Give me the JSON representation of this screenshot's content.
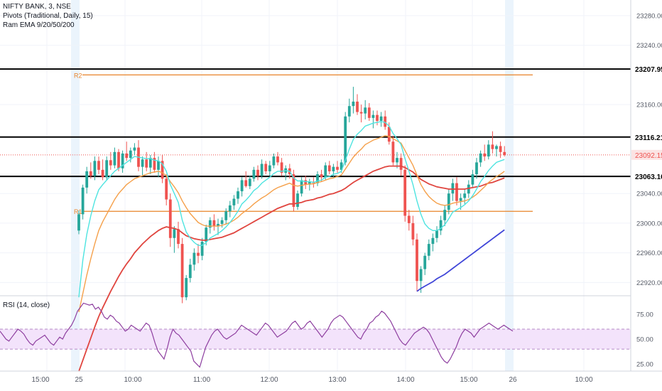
{
  "header": {
    "symbol_line": "NIFTY BANK, 3, NSE",
    "pivots_line": "Pivots (Traditional, Daily, 15)",
    "ema_line": "Ram EMA 9/20/50/200"
  },
  "rsi_title": "RSI (14, close)",
  "colors": {
    "up": "#26a69a",
    "down": "#ef5350",
    "ema9": "#4ee4e0",
    "ema20": "#f5a04a",
    "ema50": "#e0453f",
    "ema200": "#3f45d8",
    "pivot": "#e8842a",
    "rsi": "#8e3fa0",
    "rsi_band": "#f3e3fb",
    "price_line": "#ef5350"
  },
  "chart_data": {
    "type": "candlestick",
    "price_axis": {
      "ticks": [
        "23280.00",
        "23240.00",
        "23207.95",
        "23160.00",
        "23116.21",
        "23092.15",
        "23063.16",
        "23040.00",
        "23000.00",
        "22960.00",
        "22920.00"
      ],
      "tick_values": [
        23280,
        23240,
        23160,
        23040,
        23000,
        22960,
        22920
      ]
    },
    "time_axis": {
      "labels": [
        "15:00",
        "25",
        "10:00",
        "11:00",
        "12:00",
        "13:00",
        "14:00",
        "15:00",
        "26",
        "10:00"
      ]
    },
    "horizontal_lines": [
      {
        "name": "line-23207",
        "value": 23207.95,
        "label": "23207.95",
        "style": "black"
      },
      {
        "name": "line-23116",
        "value": 23116.21,
        "label": "23116.21",
        "style": "black"
      },
      {
        "name": "line-23063",
        "value": 23063.16,
        "label": "23063.16",
        "style": "black"
      }
    ],
    "last_price": {
      "value": 23092.15,
      "label": "23092.15"
    },
    "pivots": [
      {
        "label": "R2",
        "value": 23200
      },
      {
        "label": "R1",
        "value": 23016
      }
    ],
    "candles": [
      [
        22990,
        23017,
        22985,
        23012
      ],
      [
        23012,
        23052,
        23005,
        23048
      ],
      [
        23048,
        23076,
        23040,
        23070
      ],
      [
        23070,
        23082,
        23060,
        23064
      ],
      [
        23064,
        23090,
        23058,
        23084
      ],
      [
        23084,
        23090,
        23066,
        23072
      ],
      [
        23072,
        23086,
        23058,
        23062
      ],
      [
        23062,
        23090,
        23058,
        23085
      ],
      [
        23085,
        23096,
        23072,
        23078
      ],
      [
        23078,
        23102,
        23074,
        23096
      ],
      [
        23096,
        23100,
        23070,
        23074
      ],
      [
        23074,
        23098,
        23068,
        23094
      ],
      [
        23094,
        23110,
        23084,
        23088
      ],
      [
        23088,
        23102,
        23082,
        23098
      ],
      [
        23098,
        23108,
        23092,
        23102
      ],
      [
        23102,
        23112,
        23070,
        23076
      ],
      [
        23076,
        23090,
        23064,
        23086
      ],
      [
        23086,
        23096,
        23070,
        23075
      ],
      [
        23075,
        23092,
        23066,
        23088
      ],
      [
        23088,
        23096,
        23068,
        23072
      ],
      [
        23072,
        23090,
        23062,
        23084
      ],
      [
        23084,
        23092,
        23054,
        23060
      ],
      [
        23060,
        23066,
        23024,
        23032
      ],
      [
        23032,
        23040,
        22968,
        22980
      ],
      [
        22980,
        22996,
        22960,
        22992
      ],
      [
        22992,
        23002,
        22966,
        22972
      ],
      [
        22972,
        22980,
        22892,
        22900
      ],
      [
        22900,
        22930,
        22896,
        22926
      ],
      [
        22926,
        22952,
        22920,
        22944
      ],
      [
        22944,
        22966,
        22936,
        22960
      ],
      [
        22960,
        22972,
        22946,
        22956
      ],
      [
        22956,
        22980,
        22950,
        22975
      ],
      [
        22975,
        22998,
        22970,
        22994
      ],
      [
        22994,
        23008,
        22986,
        23004
      ],
      [
        23004,
        23012,
        22990,
        22996
      ],
      [
        22996,
        23006,
        22984,
        22999
      ],
      [
        22999,
        23008,
        22994,
        23004
      ],
      [
        23004,
        23020,
        22998,
        23016
      ],
      [
        23016,
        23030,
        23008,
        23024
      ],
      [
        23024,
        23038,
        23018,
        23033
      ],
      [
        23033,
        23048,
        23026,
        23043
      ],
      [
        23043,
        23062,
        23036,
        23058
      ],
      [
        23058,
        23070,
        23048,
        23050
      ],
      [
        23050,
        23064,
        23046,
        23060
      ],
      [
        23060,
        23076,
        23056,
        23072
      ],
      [
        23072,
        23078,
        23058,
        23064
      ],
      [
        23064,
        23086,
        23060,
        23080
      ],
      [
        23080,
        23084,
        23066,
        23070
      ],
      [
        23070,
        23084,
        23064,
        23078
      ],
      [
        23078,
        23094,
        23074,
        23090
      ],
      [
        23090,
        23096,
        23078,
        23082
      ],
      [
        23082,
        23088,
        23064,
        23068
      ],
      [
        23068,
        23078,
        23058,
        23074
      ],
      [
        23074,
        23080,
        23060,
        23066
      ],
      [
        23066,
        23072,
        23016,
        23022
      ],
      [
        23022,
        23044,
        23018,
        23040
      ],
      [
        23040,
        23062,
        23036,
        23058
      ],
      [
        23058,
        23064,
        23046,
        23052
      ],
      [
        23052,
        23060,
        23044,
        23056
      ],
      [
        23056,
        23062,
        23048,
        23054
      ],
      [
        23054,
        23070,
        23050,
        23066
      ],
      [
        23066,
        23072,
        23056,
        23062
      ],
      [
        23062,
        23082,
        23058,
        23078
      ],
      [
        23078,
        23084,
        23066,
        23070
      ],
      [
        23070,
        23080,
        23062,
        23076
      ],
      [
        23076,
        23084,
        23068,
        23072
      ],
      [
        23072,
        23086,
        23068,
        23082
      ],
      [
        23082,
        23150,
        23078,
        23144
      ],
      [
        23144,
        23168,
        23136,
        23158
      ],
      [
        23158,
        23184,
        23148,
        23164
      ],
      [
        23164,
        23174,
        23146,
        23150
      ],
      [
        23150,
        23160,
        23136,
        23148
      ],
      [
        23148,
        23166,
        23140,
        23156
      ],
      [
        23156,
        23162,
        23138,
        23142
      ],
      [
        23142,
        23152,
        23128,
        23146
      ],
      [
        23146,
        23152,
        23132,
        23138
      ],
      [
        23138,
        23150,
        23130,
        23144
      ],
      [
        23144,
        23152,
        23126,
        23130
      ],
      [
        23130,
        23136,
        23106,
        23110
      ],
      [
        23110,
        23118,
        23078,
        23082
      ],
      [
        23082,
        23096,
        23074,
        23088
      ],
      [
        23088,
        23094,
        23064,
        23072
      ],
      [
        23072,
        23078,
        23002,
        23010
      ],
      [
        23010,
        23018,
        22990,
        23000
      ],
      [
        23000,
        23010,
        22970,
        22978
      ],
      [
        22978,
        22986,
        22908,
        22922
      ],
      [
        22922,
        22942,
        22906,
        22938
      ],
      [
        22938,
        22960,
        22930,
        22956
      ],
      [
        22956,
        22978,
        22950,
        22972
      ],
      [
        22972,
        22986,
        22962,
        22980
      ],
      [
        22980,
        22996,
        22974,
        22990
      ],
      [
        22990,
        23010,
        22984,
        23004
      ],
      [
        23004,
        23024,
        22996,
        23018
      ],
      [
        23018,
        23046,
        23012,
        23040
      ],
      [
        23040,
        23060,
        23030,
        23054
      ],
      [
        23054,
        23062,
        23024,
        23030
      ],
      [
        23030,
        23040,
        23018,
        23034
      ],
      [
        23034,
        23046,
        23026,
        23040
      ],
      [
        23040,
        23058,
        23034,
        23052
      ],
      [
        23052,
        23072,
        23048,
        23066
      ],
      [
        23066,
        23088,
        23060,
        23082
      ],
      [
        23082,
        23098,
        23076,
        23094
      ],
      [
        23094,
        23106,
        23084,
        23090
      ],
      [
        23090,
        23112,
        23086,
        23106
      ],
      [
        23106,
        23124,
        23094,
        23100
      ],
      [
        23100,
        23106,
        23090,
        23104
      ],
      [
        23104,
        23110,
        23088,
        23096
      ],
      [
        23096,
        23104,
        23090,
        23092
      ]
    ],
    "ema9": [
      22900,
      22950,
      22985,
      23010,
      23030,
      23045,
      23052,
      23058,
      23064,
      23070,
      23074,
      23078,
      23082,
      23086,
      23090,
      23089,
      23088,
      23087,
      23087,
      23085,
      23084,
      23080,
      23070,
      23052,
      23040,
      23028,
      23004,
      22988,
      22980,
      22974,
      22970,
      22970,
      22974,
      22980,
      22983,
      22986,
      22990,
      22995,
      23001,
      23008,
      23016,
      23026,
      23031,
      23037,
      23044,
      23048,
      23054,
      23058,
      23062,
      23067,
      23070,
      23070,
      23071,
      23070,
      23061,
      23057,
      23057,
      23056,
      23056,
      23055,
      23057,
      23058,
      23062,
      23063,
      23066,
      23067,
      23070,
      23085,
      23100,
      23113,
      23120,
      23125,
      23131,
      23133,
      23135,
      23136,
      23137,
      23136,
      23131,
      23121,
      23114,
      23106,
      23087,
      23070,
      23052,
      23030,
      23012,
      22999,
      22993,
      22990,
      22990,
      22993,
      22998,
      23006,
      23015,
      23018,
      23021,
      23025,
      23030,
      23037,
      23046,
      23056,
      23063,
      23071,
      23077,
      23082,
      23084,
      23086
    ],
    "ema20": [
      22880,
      22905,
      22930,
      22952,
      22972,
      22990,
      23002,
      23012,
      23022,
      23032,
      23040,
      23046,
      23052,
      23056,
      23060,
      23062,
      23064,
      23066,
      23068,
      23069,
      23070,
      23068,
      23064,
      23056,
      23049,
      23041,
      23030,
      23021,
      23013,
      23007,
      23001,
      22998,
      22996,
      22996,
      22996,
      22996,
      22997,
      22999,
      23001,
      23004,
      23008,
      23013,
      23017,
      23021,
      23026,
      23030,
      23034,
      23037,
      23041,
      23045,
      23048,
      23050,
      23052,
      23054,
      23051,
      23050,
      23051,
      23052,
      23053,
      23053,
      23055,
      23056,
      23058,
      23060,
      23061,
      23063,
      23065,
      23073,
      23081,
      23089,
      23095,
      23100,
      23106,
      23109,
      23112,
      23114,
      23116,
      23118,
      23117,
      23114,
      23111,
      23108,
      23098,
      23088,
      23078,
      23065,
      23052,
      23043,
      23036,
      23031,
      23027,
      23025,
      23024,
      23025,
      23027,
      23028,
      23029,
      23030,
      23032,
      23035,
      23039,
      23044,
      23049,
      23055,
      23059,
      23063,
      23066,
      23070
    ],
    "ema50": [
      22800,
      22815,
      22830,
      22845,
      22860,
      22874,
      22886,
      22897,
      22908,
      22918,
      22928,
      22937,
      22945,
      22952,
      22960,
      22966,
      22972,
      22977,
      22982,
      22986,
      22990,
      22993,
      22995,
      22994,
      22993,
      22991,
      22987,
      22983,
      22981,
      22979,
      22978,
      22977,
      22977,
      22978,
      22979,
      22980,
      22981,
      22983,
      22985,
      22987,
      22990,
      22993,
      22996,
      22999,
      23002,
      23005,
      23008,
      23011,
      23014,
      23017,
      23020,
      23022,
      23024,
      23026,
      23026,
      23027,
      23028,
      23030,
      23031,
      23032,
      23034,
      23035,
      23037,
      23039,
      23040,
      23042,
      23044,
      23047,
      23051,
      23055,
      23058,
      23061,
      23064,
      23067,
      23070,
      23072,
      23074,
      23076,
      23077,
      23077,
      23077,
      23077,
      23075,
      23072,
      23069,
      23064,
      23059,
      23056,
      23053,
      23051,
      23049,
      23048,
      23047,
      23046,
      23046,
      23046,
      23046,
      23046,
      23047,
      23048,
      23049,
      23050,
      23052,
      23054,
      23055,
      23057,
      23059,
      23061
    ],
    "ema200": {
      "start_index": 85,
      "values": [
        22908,
        22912,
        22915,
        22918,
        22921,
        22925,
        22928,
        22931,
        22935,
        22939,
        22943,
        22947,
        22951,
        22955,
        22959,
        22963,
        22967,
        22971,
        22975,
        22979,
        22983,
        22987,
        22991
      ]
    },
    "rsi": {
      "ticks": [
        "75.00",
        "50.00",
        "25.00"
      ],
      "tick_values": [
        75,
        50,
        25
      ],
      "band": [
        40,
        60
      ],
      "values": [
        58,
        54,
        50,
        48,
        52,
        56,
        60,
        58,
        55,
        50,
        46,
        44,
        48,
        50,
        52,
        54,
        50,
        46,
        44,
        48,
        52,
        50,
        56,
        60,
        64,
        70,
        78,
        82,
        86,
        85,
        84,
        85,
        80,
        82,
        78,
        72,
        70,
        74,
        72,
        68,
        66,
        62,
        58,
        60,
        64,
        62,
        60,
        58,
        62,
        66,
        64,
        56,
        46,
        38,
        34,
        30,
        40,
        52,
        60,
        56,
        54,
        50,
        46,
        42,
        38,
        28,
        25,
        22,
        32,
        42,
        48,
        54,
        58,
        60,
        56,
        52,
        50,
        52,
        54,
        56,
        60,
        64,
        62,
        60,
        58,
        56,
        54,
        58,
        62,
        66,
        64,
        60,
        56,
        52,
        54,
        56,
        58,
        62,
        66,
        68,
        64,
        60,
        62,
        66,
        68,
        64,
        60,
        56,
        52,
        56,
        60,
        66,
        70,
        72,
        74,
        72,
        68,
        64,
        60,
        56,
        52,
        50,
        56,
        60,
        66,
        68,
        72,
        74,
        78,
        76,
        72,
        68,
        62,
        56,
        50,
        46,
        44,
        48,
        52,
        56,
        58,
        60,
        62,
        60,
        56,
        50,
        44,
        38,
        32,
        28,
        26,
        30,
        36,
        42,
        50,
        56,
        60,
        58,
        56,
        52,
        56,
        60,
        62,
        64,
        66,
        64,
        62,
        60,
        62,
        64,
        62,
        60,
        58
      ],
      "ylim": [
        18,
        92
      ]
    }
  }
}
